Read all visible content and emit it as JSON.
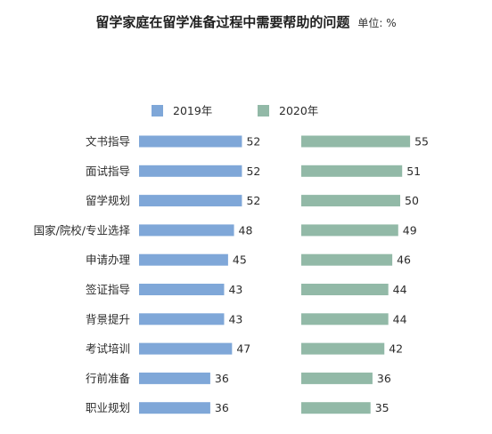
{
  "chart_data": {
    "type": "bar",
    "title": "留学家庭在留学准备过程中需要帮助的问题",
    "unit": "单位: %",
    "categories": [
      "文书指导",
      "面试指导",
      "留学规划",
      "国家/院校/专业选择",
      "申请办理",
      "签证指导",
      "背景提升",
      "考试培训",
      "行前准备",
      "职业规划"
    ],
    "series": [
      {
        "name": "2019年",
        "color": "#7fa7d8",
        "values": [
          52,
          52,
          52,
          48,
          45,
          43,
          43,
          47,
          36,
          36
        ]
      },
      {
        "name": "2020年",
        "color": "#92b9a7",
        "values": [
          55,
          51,
          50,
          49,
          46,
          44,
          44,
          42,
          36,
          35
        ]
      }
    ],
    "orientation": "horizontal",
    "legend": "top",
    "grid": false
  }
}
